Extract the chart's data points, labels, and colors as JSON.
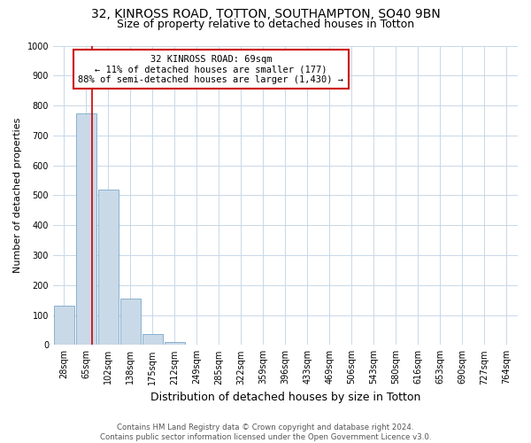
{
  "title_line1": "32, KINROSS ROAD, TOTTON, SOUTHAMPTON, SO40 9BN",
  "title_line2": "Size of property relative to detached houses in Totton",
  "xlabel": "Distribution of detached houses by size in Totton",
  "ylabel": "Number of detached properties",
  "bin_labels": [
    "28sqm",
    "65sqm",
    "102sqm",
    "138sqm",
    "175sqm",
    "212sqm",
    "249sqm",
    "285sqm",
    "322sqm",
    "359sqm",
    "396sqm",
    "433sqm",
    "469sqm",
    "506sqm",
    "543sqm",
    "580sqm",
    "616sqm",
    "653sqm",
    "690sqm",
    "727sqm",
    "764sqm"
  ],
  "bar_heights": [
    130,
    775,
    520,
    155,
    35,
    10,
    0,
    0,
    0,
    0,
    0,
    0,
    0,
    0,
    0,
    0,
    0,
    0,
    0,
    0,
    0
  ],
  "bar_color": "#c9d9e8",
  "bar_edge_color": "#7aa8c8",
  "vline_x": 1.28,
  "vline_color": "#cc0000",
  "annotation_text": "32 KINROSS ROAD: 69sqm\n← 11% of detached houses are smaller (177)\n88% of semi-detached houses are larger (1,430) →",
  "annotation_box_color": "white",
  "annotation_box_edge_color": "#cc0000",
  "ylim": [
    0,
    1000
  ],
  "yticks": [
    0,
    100,
    200,
    300,
    400,
    500,
    600,
    700,
    800,
    900,
    1000
  ],
  "footer_text": "Contains HM Land Registry data © Crown copyright and database right 2024.\nContains public sector information licensed under the Open Government Licence v3.0.",
  "background_color": "#ffffff",
  "grid_color": "#c8d8e8",
  "title1_fontsize": 10,
  "title2_fontsize": 9,
  "xlabel_fontsize": 9,
  "ylabel_fontsize": 8,
  "tick_fontsize": 7,
  "annotation_fontsize": 7.5
}
